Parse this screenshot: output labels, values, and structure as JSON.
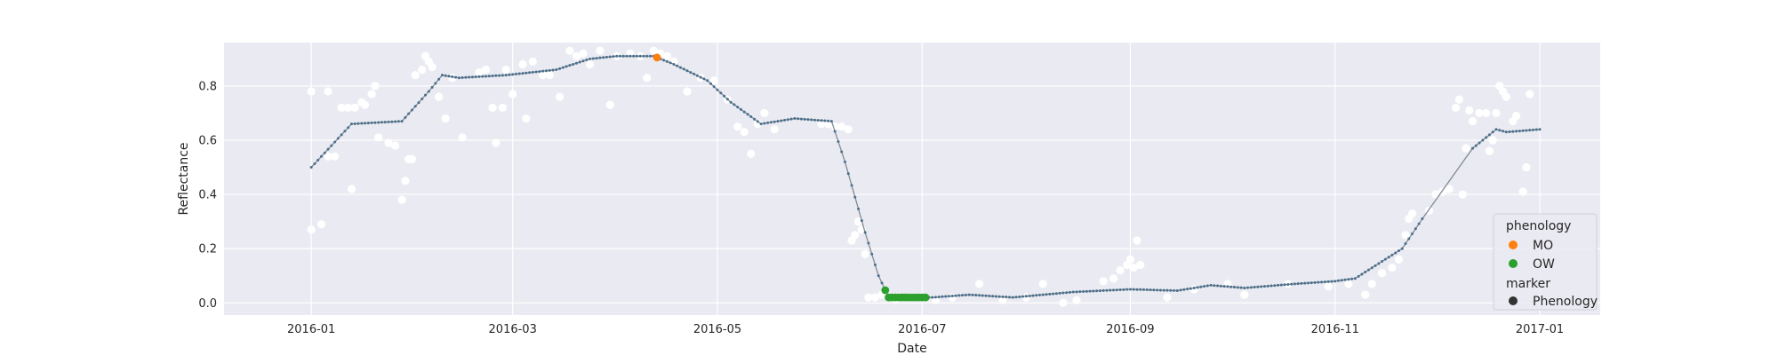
{
  "chart_data": {
    "type": "scatter",
    "title": "",
    "xlabel": "Date",
    "ylabel": "Reflectance",
    "xlim": [
      "2015-12-06",
      "2017-01-19"
    ],
    "ylim": [
      -0.045,
      0.96
    ],
    "grid": true,
    "x_ticks": [
      {
        "date": "2016-01-01",
        "label": "2016-01"
      },
      {
        "date": "2016-03-01",
        "label": "2016-03"
      },
      {
        "date": "2016-05-01",
        "label": "2016-05"
      },
      {
        "date": "2016-07-01",
        "label": "2016-07"
      },
      {
        "date": "2016-09-01",
        "label": "2016-09"
      },
      {
        "date": "2016-11-01",
        "label": "2016-11"
      },
      {
        "date": "2017-01-01",
        "label": "2017-01"
      }
    ],
    "y_ticks": [
      {
        "value": 0.0,
        "label": "0.0"
      },
      {
        "value": 0.2,
        "label": "0.2"
      },
      {
        "value": 0.4,
        "label": "0.4"
      },
      {
        "value": 0.6,
        "label": "0.6"
      },
      {
        "value": 0.8,
        "label": "0.8"
      }
    ],
    "legend": {
      "position": "lower-right",
      "hue_title": "phenology",
      "marker_title": "marker",
      "entries": [
        {
          "label": "MO",
          "color": "#ff7f0e"
        },
        {
          "label": "OW",
          "color": "#2ca02c"
        }
      ],
      "marker_entries": [
        {
          "label": "Phenology",
          "color": "#333333"
        }
      ]
    },
    "colors": {
      "background": "#eaeaf2",
      "grid": "#ffffff",
      "observations": "#ffffff",
      "smoothed_line": "#4c6f8a",
      "MO": "#ff7f0e",
      "OW": "#2ca02c"
    },
    "smoothed_series": [
      [
        "2016-01-01",
        0.5
      ],
      [
        "2016-01-13",
        0.66
      ],
      [
        "2016-01-28",
        0.67
      ],
      [
        "2016-02-05",
        0.78
      ],
      [
        "2016-02-09",
        0.84
      ],
      [
        "2016-02-14",
        0.83
      ],
      [
        "2016-02-28",
        0.84
      ],
      [
        "2016-03-14",
        0.86
      ],
      [
        "2016-03-24",
        0.9
      ],
      [
        "2016-04-01",
        0.91
      ],
      [
        "2016-04-08",
        0.91
      ],
      [
        "2016-04-12",
        0.91
      ],
      [
        "2016-04-18",
        0.88
      ],
      [
        "2016-04-28",
        0.82
      ],
      [
        "2016-05-05",
        0.74
      ],
      [
        "2016-05-14",
        0.66
      ],
      [
        "2016-05-24",
        0.68
      ],
      [
        "2016-06-04",
        0.67
      ],
      [
        "2016-06-08",
        0.52
      ],
      [
        "2016-06-14",
        0.26
      ],
      [
        "2016-06-18",
        0.1
      ],
      [
        "2016-06-21",
        0.02
      ],
      [
        "2016-07-04",
        0.02
      ],
      [
        "2016-07-15",
        0.03
      ],
      [
        "2016-07-28",
        0.02
      ],
      [
        "2016-08-15",
        0.04
      ],
      [
        "2016-09-01",
        0.05
      ],
      [
        "2016-09-15",
        0.045
      ],
      [
        "2016-09-25",
        0.065
      ],
      [
        "2016-10-05",
        0.055
      ],
      [
        "2016-10-20",
        0.07
      ],
      [
        "2016-11-01",
        0.08
      ],
      [
        "2016-11-07",
        0.09
      ],
      [
        "2016-11-21",
        0.2
      ],
      [
        "2016-11-27",
        0.31
      ],
      [
        "2016-12-12",
        0.57
      ],
      [
        "2016-12-19",
        0.64
      ],
      [
        "2016-12-22",
        0.63
      ],
      [
        "2017-01-01",
        0.64
      ]
    ],
    "observations": [
      [
        "2016-01-01",
        0.27
      ],
      [
        "2016-01-01",
        0.78
      ],
      [
        "2016-01-04",
        0.29
      ],
      [
        "2016-01-06",
        0.78
      ],
      [
        "2016-01-06",
        0.54
      ],
      [
        "2016-01-08",
        0.54
      ],
      [
        "2016-01-10",
        0.72
      ],
      [
        "2016-01-12",
        0.72
      ],
      [
        "2016-01-13",
        0.42
      ],
      [
        "2016-01-14",
        0.72
      ],
      [
        "2016-01-16",
        0.74
      ],
      [
        "2016-01-17",
        0.73
      ],
      [
        "2016-01-19",
        0.77
      ],
      [
        "2016-01-20",
        0.8
      ],
      [
        "2016-01-21",
        0.61
      ],
      [
        "2016-01-24",
        0.59
      ],
      [
        "2016-01-26",
        0.58
      ],
      [
        "2016-01-28",
        0.38
      ],
      [
        "2016-01-29",
        0.45
      ],
      [
        "2016-01-30",
        0.53
      ],
      [
        "2016-01-31",
        0.53
      ],
      [
        "2016-02-01",
        0.84
      ],
      [
        "2016-02-03",
        0.86
      ],
      [
        "2016-02-04",
        0.91
      ],
      [
        "2016-02-05",
        0.89
      ],
      [
        "2016-02-06",
        0.87
      ],
      [
        "2016-02-08",
        0.76
      ],
      [
        "2016-02-10",
        0.68
      ],
      [
        "2016-02-12",
        0.83
      ],
      [
        "2016-02-15",
        0.61
      ],
      [
        "2016-02-20",
        0.85
      ],
      [
        "2016-02-22",
        0.86
      ],
      [
        "2016-02-24",
        0.72
      ],
      [
        "2016-02-25",
        0.59
      ],
      [
        "2016-02-27",
        0.72
      ],
      [
        "2016-02-28",
        0.86
      ],
      [
        "2016-03-01",
        0.77
      ],
      [
        "2016-03-04",
        0.88
      ],
      [
        "2016-03-05",
        0.68
      ],
      [
        "2016-03-07",
        0.89
      ],
      [
        "2016-03-10",
        0.84
      ],
      [
        "2016-03-12",
        0.84
      ],
      [
        "2016-03-15",
        0.76
      ],
      [
        "2016-03-18",
        0.93
      ],
      [
        "2016-03-20",
        0.91
      ],
      [
        "2016-03-22",
        0.92
      ],
      [
        "2016-03-24",
        0.88
      ],
      [
        "2016-03-27",
        0.93
      ],
      [
        "2016-03-30",
        0.73
      ],
      [
        "2016-04-01",
        0.91
      ],
      [
        "2016-04-05",
        0.92
      ],
      [
        "2016-04-08",
        0.91
      ],
      [
        "2016-04-10",
        0.83
      ],
      [
        "2016-04-12",
        0.93
      ],
      [
        "2016-04-14",
        0.92
      ],
      [
        "2016-04-16",
        0.91
      ],
      [
        "2016-04-18",
        0.89
      ],
      [
        "2016-04-22",
        0.78
      ],
      [
        "2016-04-26",
        0.83
      ],
      [
        "2016-04-30",
        0.82
      ],
      [
        "2016-05-04",
        0.75
      ],
      [
        "2016-05-07",
        0.65
      ],
      [
        "2016-05-09",
        0.63
      ],
      [
        "2016-05-11",
        0.55
      ],
      [
        "2016-05-13",
        0.66
      ],
      [
        "2016-05-15",
        0.7
      ],
      [
        "2016-05-18",
        0.64
      ],
      [
        "2016-06-01",
        0.66
      ],
      [
        "2016-06-03",
        0.66
      ],
      [
        "2016-06-05",
        0.65
      ],
      [
        "2016-06-07",
        0.65
      ],
      [
        "2016-06-09",
        0.64
      ],
      [
        "2016-06-10",
        0.23
      ],
      [
        "2016-06-11",
        0.25
      ],
      [
        "2016-06-12",
        0.3
      ],
      [
        "2016-06-13",
        0.27
      ],
      [
        "2016-06-14",
        0.18
      ],
      [
        "2016-06-15",
        0.02
      ],
      [
        "2016-06-17",
        0.02
      ],
      [
        "2016-06-19",
        0.03
      ],
      [
        "2016-06-23",
        0.01
      ],
      [
        "2016-06-28",
        0.02
      ],
      [
        "2016-07-05",
        0.01
      ],
      [
        "2016-07-10",
        0.02
      ],
      [
        "2016-07-18",
        0.07
      ],
      [
        "2016-07-25",
        0.01
      ],
      [
        "2016-08-01",
        0.02
      ],
      [
        "2016-08-06",
        0.07
      ],
      [
        "2016-08-12",
        0.0
      ],
      [
        "2016-08-16",
        0.01
      ],
      [
        "2016-08-24",
        0.08
      ],
      [
        "2016-08-27",
        0.09
      ],
      [
        "2016-08-29",
        0.12
      ],
      [
        "2016-08-31",
        0.14
      ],
      [
        "2016-09-01",
        0.16
      ],
      [
        "2016-09-02",
        0.13
      ],
      [
        "2016-09-03",
        0.23
      ],
      [
        "2016-09-04",
        0.14
      ],
      [
        "2016-09-12",
        0.02
      ],
      [
        "2016-09-20",
        0.05
      ],
      [
        "2016-09-30",
        0.07
      ],
      [
        "2016-10-05",
        0.03
      ],
      [
        "2016-10-18",
        0.07
      ],
      [
        "2016-10-30",
        0.06
      ],
      [
        "2016-11-05",
        0.07
      ],
      [
        "2016-11-10",
        0.03
      ],
      [
        "2016-11-12",
        0.07
      ],
      [
        "2016-11-15",
        0.11
      ],
      [
        "2016-11-18",
        0.13
      ],
      [
        "2016-11-20",
        0.16
      ],
      [
        "2016-11-22",
        0.25
      ],
      [
        "2016-11-23",
        0.31
      ],
      [
        "2016-11-24",
        0.33
      ],
      [
        "2016-11-29",
        0.34
      ],
      [
        "2016-12-01",
        0.4
      ],
      [
        "2016-12-03",
        0.41
      ],
      [
        "2016-12-05",
        0.42
      ],
      [
        "2016-12-07",
        0.72
      ],
      [
        "2016-12-08",
        0.75
      ],
      [
        "2016-12-09",
        0.4
      ],
      [
        "2016-12-10",
        0.57
      ],
      [
        "2016-12-11",
        0.71
      ],
      [
        "2016-12-12",
        0.67
      ],
      [
        "2016-12-14",
        0.7
      ],
      [
        "2016-12-16",
        0.7
      ],
      [
        "2016-12-17",
        0.56
      ],
      [
        "2016-12-18",
        0.6
      ],
      [
        "2016-12-19",
        0.7
      ],
      [
        "2016-12-20",
        0.8
      ],
      [
        "2016-12-21",
        0.78
      ],
      [
        "2016-12-22",
        0.76
      ],
      [
        "2016-12-24",
        0.67
      ],
      [
        "2016-12-25",
        0.69
      ],
      [
        "2016-12-27",
        0.41
      ],
      [
        "2016-12-28",
        0.5
      ],
      [
        "2016-12-29",
        0.77
      ]
    ],
    "phenology_points": [
      {
        "phenology": "MO",
        "dates": [
          "2016-04-13"
        ]
      },
      {
        "phenology": "OW",
        "dates": [
          "2016-06-20",
          "2016-06-21",
          "2016-06-22",
          "2016-06-23",
          "2016-06-24",
          "2016-06-25",
          "2016-06-26",
          "2016-06-27",
          "2016-06-28",
          "2016-06-29",
          "2016-06-30",
          "2016-07-01",
          "2016-07-02"
        ]
      }
    ]
  }
}
